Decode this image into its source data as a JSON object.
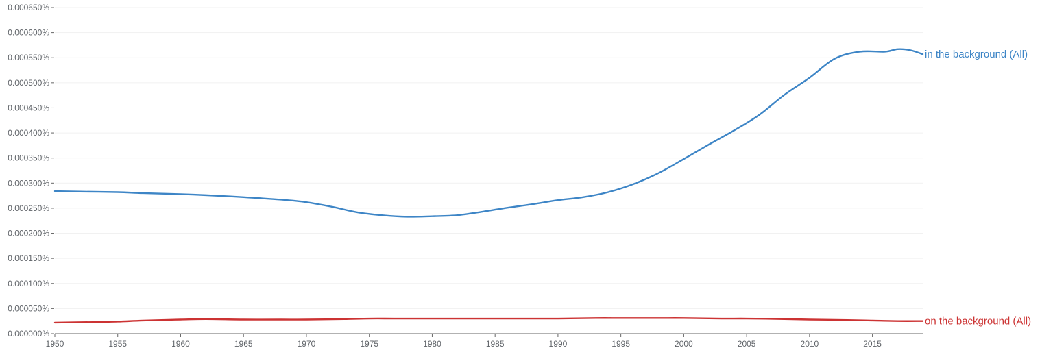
{
  "chart_data": {
    "type": "line",
    "title": "",
    "xlabel": "",
    "ylabel": "",
    "xlim": [
      1950,
      2019
    ],
    "ylim": [
      0,
      0.00065
    ],
    "grid": true,
    "legend": "inline-right",
    "x_ticks": [
      "1950",
      "1955",
      "1960",
      "1965",
      "1970",
      "1975",
      "1980",
      "1985",
      "1990",
      "1995",
      "2000",
      "2005",
      "2010",
      "2015"
    ],
    "y_ticks": [
      "0.000000%",
      "0.000050%",
      "0.000100%",
      "0.000150%",
      "0.000200%",
      "0.000250%",
      "0.000300%",
      "0.000350%",
      "0.000400%",
      "0.000450%",
      "0.000500%",
      "0.000550%",
      "0.000600%",
      "0.000650%"
    ],
    "series": [
      {
        "name": "in the background (All)",
        "color": "#3d85c6",
        "x": [
          1950,
          1952,
          1955,
          1957,
          1960,
          1962,
          1965,
          1968,
          1970,
          1972,
          1974,
          1976,
          1978,
          1980,
          1982,
          1984,
          1986,
          1988,
          1990,
          1992,
          1994,
          1996,
          1998,
          2000,
          2002,
          2004,
          2006,
          2008,
          2010,
          2012,
          2014,
          2016,
          2017,
          2018,
          2019
        ],
        "values": [
          0.000284,
          0.000283,
          0.000282,
          0.00028,
          0.000278,
          0.000276,
          0.000272,
          0.000267,
          0.000262,
          0.000253,
          0.000242,
          0.000236,
          0.000233,
          0.000234,
          0.000236,
          0.000243,
          0.000251,
          0.000258,
          0.000266,
          0.000272,
          0.000282,
          0.000298,
          0.00032,
          0.000348,
          0.000377,
          0.000405,
          0.000436,
          0.000476,
          0.00051,
          0.000548,
          0.000562,
          0.000562,
          0.000567,
          0.000565,
          0.000557
        ]
      },
      {
        "name": "on the background (All)",
        "color": "#cc3333",
        "x": [
          1950,
          1953,
          1955,
          1957,
          1960,
          1962,
          1965,
          1968,
          1970,
          1973,
          1975,
          1977,
          1980,
          1983,
          1985,
          1988,
          1990,
          1993,
          1995,
          1998,
          2000,
          2003,
          2005,
          2008,
          2010,
          2013,
          2015,
          2017,
          2019
        ],
        "values": [
          2.2e-05,
          2.3e-05,
          2.4e-05,
          2.6e-05,
          2.8e-05,
          2.9e-05,
          2.8e-05,
          2.8e-05,
          2.8e-05,
          2.9e-05,
          3e-05,
          3e-05,
          3e-05,
          3e-05,
          3e-05,
          3e-05,
          3e-05,
          3.1e-05,
          3.1e-05,
          3.1e-05,
          3.1e-05,
          3e-05,
          3e-05,
          2.9e-05,
          2.8e-05,
          2.7e-05,
          2.6e-05,
          2.5e-05,
          2.5e-05
        ]
      }
    ]
  }
}
